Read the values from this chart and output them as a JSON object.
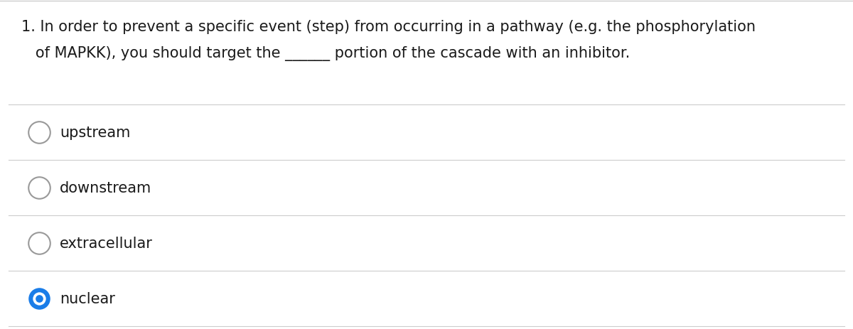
{
  "background_color": "#ffffff",
  "top_border_color": "#cccccc",
  "question_text_line1": "1. In order to prevent a specific event (step) from occurring in a pathway (e.g. the phosphorylation",
  "question_text_line2": "   of MAPKK), you should target the ______ portion of the cascade with an inhibitor.",
  "options": [
    "upstream",
    "downstream",
    "extracellular",
    "nuclear"
  ],
  "selected_option": 3,
  "selected_color": "#1a7de8",
  "unselected_color": "#ffffff",
  "unselected_border": "#999999",
  "text_color": "#1a1a1a",
  "divider_color": "#cccccc",
  "question_fontsize": 15.0,
  "option_fontsize": 15.0,
  "fig_width": 12.0,
  "fig_height": 4.64,
  "dpi": 100
}
